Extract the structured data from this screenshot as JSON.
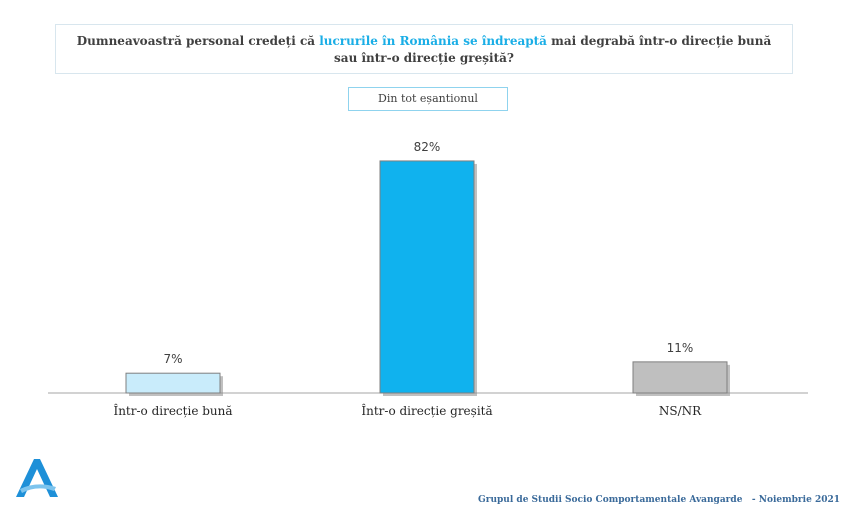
{
  "question": {
    "part1": "Dumneavoastră personal credeți că ",
    "highlight": "lucrurile în România se îndreaptă",
    "part2": " mai degrabă într-o direcție bună sau într-o direcție greșită?"
  },
  "sample_label": "Din tot eșantionul",
  "chart_data": {
    "type": "bar",
    "categories": [
      "Într-o direcție bună",
      "Într-o direcție greșită",
      "NS/NR"
    ],
    "values": [
      7,
      82,
      11
    ],
    "value_labels": [
      "7%",
      "82%",
      "11%"
    ],
    "colors": [
      "#c9ecfb",
      "#10b2ee",
      "#bfbfbf"
    ],
    "ylim": [
      0,
      100
    ],
    "title": "",
    "xlabel": "",
    "ylabel": ""
  },
  "logo": {
    "icon": "avangarde-logo-icon",
    "color": "#1e90d8"
  },
  "footer": {
    "org": "Grupul de Studii Socio Comportamentale Avangarde",
    "date": "- Noiembrie 2021"
  }
}
